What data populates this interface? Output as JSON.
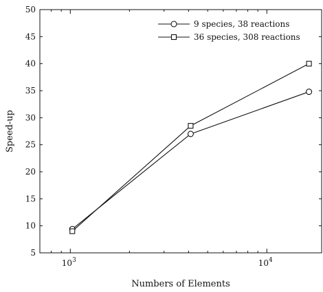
{
  "chart_data": {
    "type": "line",
    "xlabel": "Numbers of Elements",
    "ylabel": "Speed-up",
    "xscale": "log",
    "xlim": [
      700,
      19000
    ],
    "ylim": [
      5,
      50
    ],
    "yticks": [
      5,
      10,
      15,
      20,
      25,
      30,
      35,
      40,
      45,
      50
    ],
    "xticks": [
      {
        "value": 1000,
        "base": "10",
        "exp": "3"
      },
      {
        "value": 10000,
        "base": "10",
        "exp": "4"
      }
    ],
    "legend_position": "top-right",
    "grid": false,
    "series": [
      {
        "name": "9 species, 38 reactions",
        "marker": "circle",
        "x": [
          1024,
          4096,
          16384
        ],
        "y": [
          9.4,
          27.0,
          34.8
        ]
      },
      {
        "name": "36 species, 308 reactions",
        "marker": "square",
        "x": [
          1024,
          4096,
          16384
        ],
        "y": [
          9.0,
          28.5,
          40.0
        ]
      }
    ]
  }
}
